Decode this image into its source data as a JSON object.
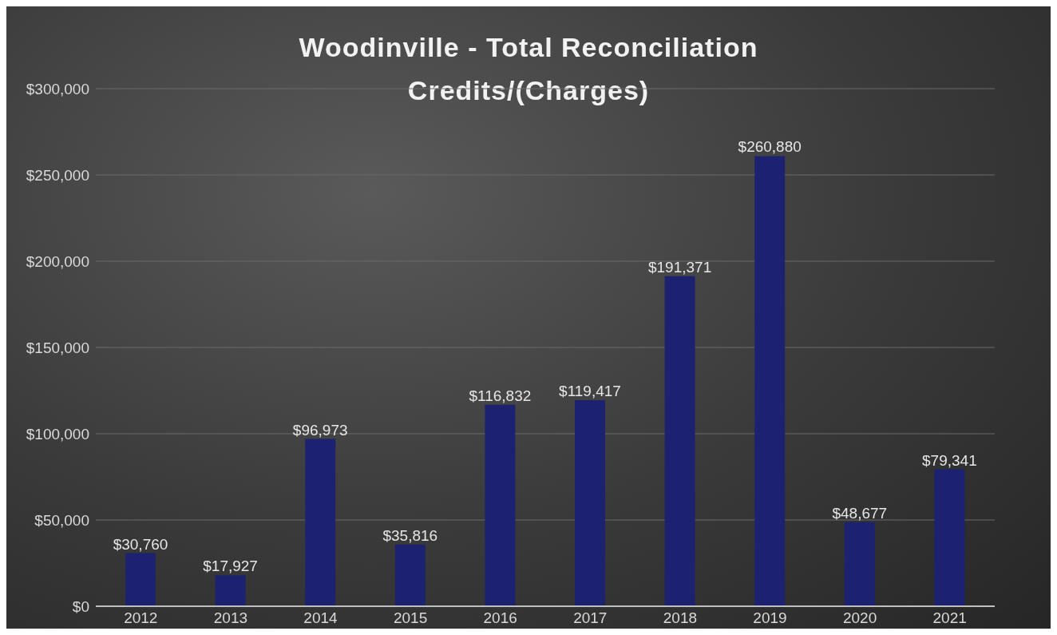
{
  "chart_data": {
    "type": "bar",
    "title": "Woodinville - Total Reconciliation Credits/(Charges)",
    "categories": [
      "2012",
      "2013",
      "2014",
      "2015",
      "2016",
      "2017",
      "2018",
      "2019",
      "2020",
      "2021"
    ],
    "values": [
      30760,
      17927,
      96973,
      35816,
      116832,
      119417,
      191371,
      260880,
      48677,
      79341
    ],
    "value_labels": [
      "$30,760",
      "$17,927",
      "$96,973",
      "$35,816",
      "$116,832",
      "$119,417",
      "$191,371",
      "$260,880",
      "$48,677",
      "$79,341"
    ],
    "color": "#1c2270",
    "ylim": [
      0,
      300000
    ],
    "yticks": [
      {
        "value": 0,
        "label": "$0"
      },
      {
        "value": 50000,
        "label": "$50,000"
      },
      {
        "value": 100000,
        "label": "$100,000"
      },
      {
        "value": 150000,
        "label": "$150,000"
      },
      {
        "value": 200000,
        "label": "$200,000"
      },
      {
        "value": 250000,
        "label": "$250,000"
      },
      {
        "value": 300000,
        "label": "$300,000"
      }
    ],
    "grid": "y"
  }
}
